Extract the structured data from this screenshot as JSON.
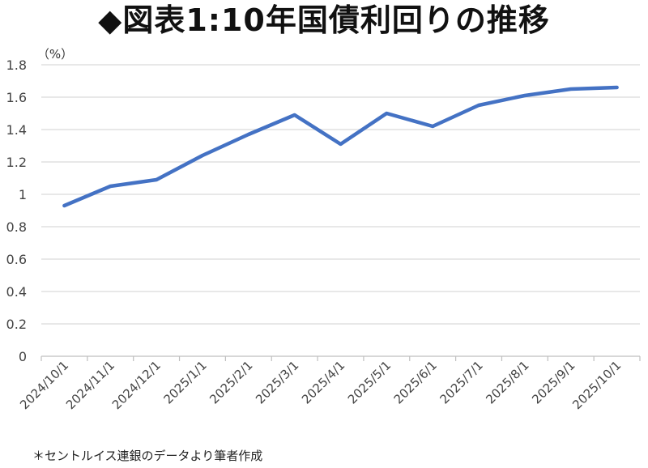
{
  "chart_data": {
    "type": "line",
    "title": "◆図表1:10年国債利回りの推移",
    "unit_label": "（%）",
    "categories": [
      "2024/10/1",
      "2024/11/1",
      "2024/12/1",
      "2025/1/1",
      "2025/2/1",
      "2025/3/1",
      "2025/4/1",
      "2025/5/1",
      "2025/6/1",
      "2025/7/1",
      "2025/8/1",
      "2025/9/1",
      "2025/10/1"
    ],
    "series": [
      {
        "values": [
          0.93,
          1.05,
          1.09,
          1.24,
          1.37,
          1.49,
          1.31,
          1.5,
          1.42,
          1.55,
          1.61,
          1.65,
          1.66
        ]
      }
    ],
    "ylim": [
      0,
      1.8
    ],
    "yticks": [
      "0",
      "0.2",
      "0.4",
      "0.6",
      "0.8",
      "1",
      "1.2",
      "1.4",
      "1.6",
      "1.8"
    ],
    "grid": true,
    "line_color": "#4472C4",
    "grid_color": "#d9d9d9"
  },
  "source_note": "＊セントルイス連銀のデータより筆者作成"
}
